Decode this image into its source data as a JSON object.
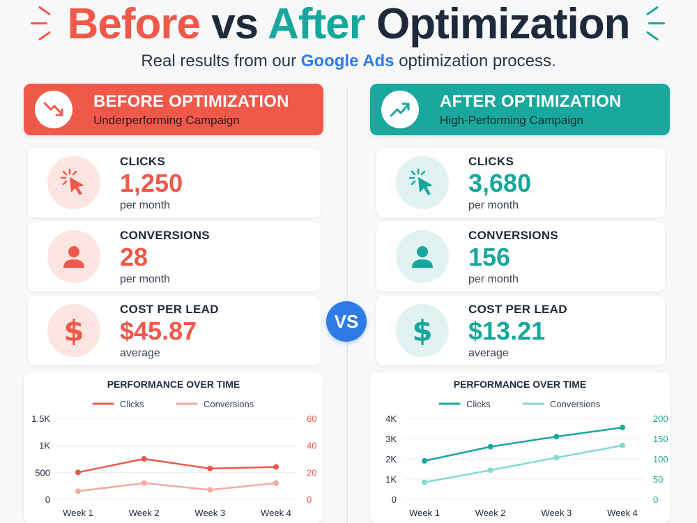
{
  "header": {
    "title_before": "Before",
    "title_vs": "vs",
    "title_after": "After",
    "title_optimization": "Optimization",
    "subtitle_prefix": "Real results from our ",
    "subtitle_brand": "Google Ads",
    "subtitle_suffix": " optimization process."
  },
  "vs_badge": "VS",
  "before": {
    "banner_title": "BEFORE OPTIMIZATION",
    "banner_subtitle": "Underperforming Campaign",
    "banner_icon": "trend-down-icon",
    "metrics": [
      {
        "label": "CLICKS",
        "value": "1,250",
        "unit": "per month",
        "icon": "cursor-click-icon"
      },
      {
        "label": "CONVERSIONS",
        "value": "28",
        "unit": "per month",
        "icon": "user-icon"
      },
      {
        "label": "COST PER LEAD",
        "value": "$45.87",
        "unit": "average",
        "icon": "dollar-icon"
      }
    ]
  },
  "after": {
    "banner_title": "AFTER OPTIMIZATION",
    "banner_subtitle": "High-Performing Campaign",
    "banner_icon": "trend-up-icon",
    "metrics": [
      {
        "label": "CLICKS",
        "value": "3,680",
        "unit": "per month",
        "icon": "cursor-click-icon"
      },
      {
        "label": "CONVERSIONS",
        "value": "156",
        "unit": "per month",
        "icon": "user-icon"
      },
      {
        "label": "COST PER LEAD",
        "value": "$13.21",
        "unit": "average",
        "icon": "dollar-icon"
      }
    ]
  },
  "colors": {
    "before_accent": "#f0584a",
    "before_light": "#f7a8a0",
    "after_accent": "#18a79c",
    "after_light": "#86d9d4",
    "vs_blue": "#2f7be5"
  },
  "chart_data": [
    {
      "type": "line",
      "title": "PERFORMANCE OVER TIME",
      "categories": [
        "Week 1",
        "Week 2",
        "Week 3",
        "Week 4"
      ],
      "series": [
        {
          "name": "Clicks",
          "axis": "left",
          "values": [
            500,
            750,
            570,
            600
          ],
          "color": "#f0584a"
        },
        {
          "name": "Conversions",
          "axis": "right",
          "values": [
            6,
            12,
            7,
            12
          ],
          "color": "#f7a8a0"
        }
      ],
      "y_left": {
        "ticks": [
          "0",
          "500",
          "1K",
          "1.5K"
        ],
        "range": [
          0,
          1500
        ]
      },
      "y_right": {
        "ticks": [
          "0",
          "20",
          "40",
          "60"
        ],
        "range": [
          0,
          60
        ]
      },
      "legend": "top-center",
      "grid": true
    },
    {
      "type": "line",
      "title": "PERFORMANCE OVER TIME",
      "categories": [
        "Week 1",
        "Week 2",
        "Week 3",
        "Week 4"
      ],
      "series": [
        {
          "name": "Clicks",
          "axis": "left",
          "values": [
            1900,
            2600,
            3100,
            3550
          ],
          "color": "#18a79c"
        },
        {
          "name": "Conversions",
          "axis": "right",
          "values": [
            42,
            72,
            103,
            133
          ],
          "color": "#86d9d4"
        }
      ],
      "y_left": {
        "ticks": [
          "0",
          "1K",
          "2K",
          "3K",
          "4K"
        ],
        "range": [
          0,
          4000
        ]
      },
      "y_right": {
        "ticks": [
          "0",
          "50",
          "100",
          "150",
          "200"
        ],
        "range": [
          0,
          200
        ]
      },
      "legend": "top-center",
      "grid": true
    }
  ]
}
